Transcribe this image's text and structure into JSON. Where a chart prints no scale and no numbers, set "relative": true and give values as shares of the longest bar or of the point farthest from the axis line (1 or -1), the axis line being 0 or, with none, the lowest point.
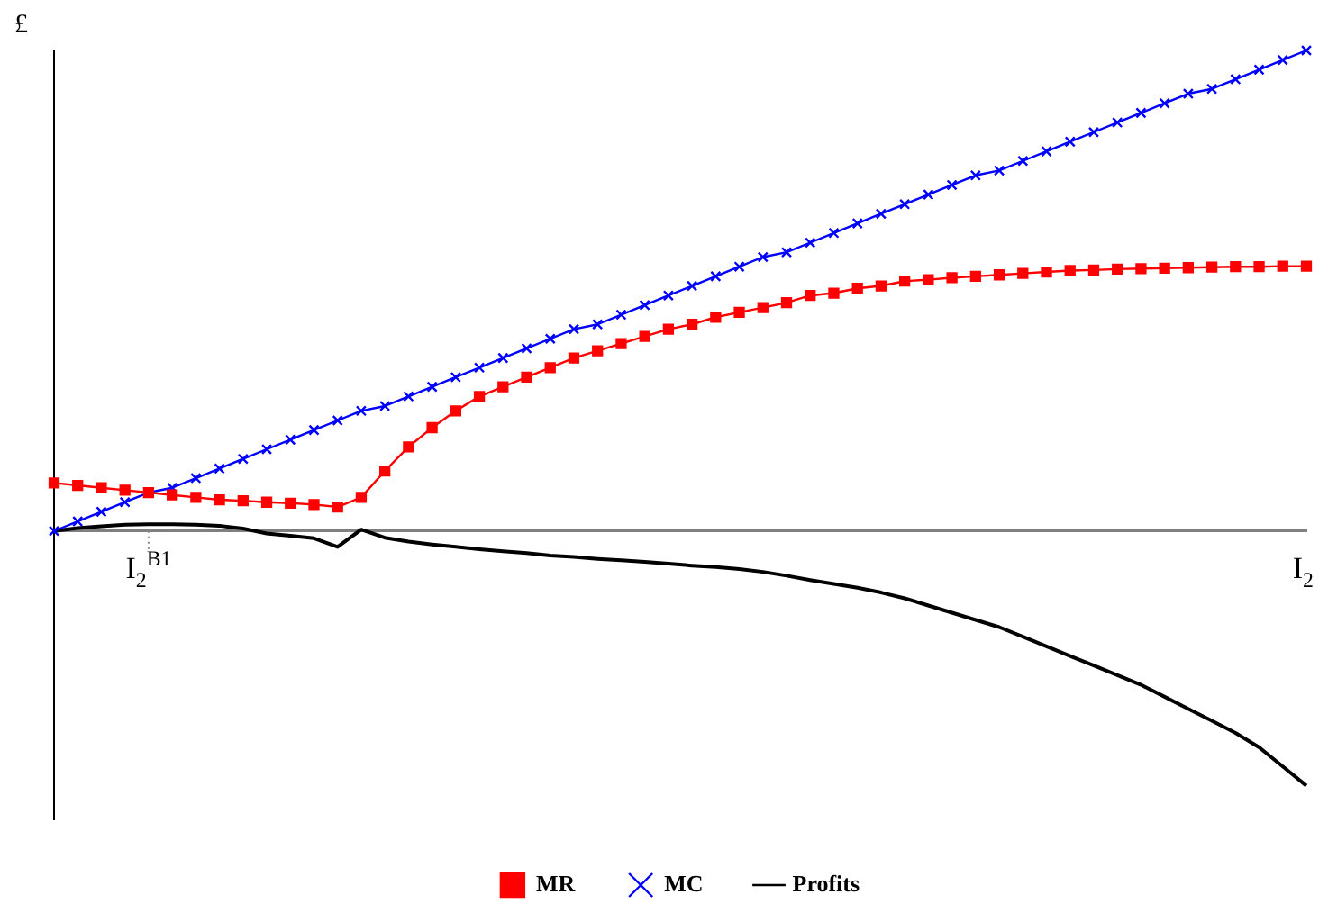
{
  "chart_data": {
    "type": "line",
    "relative": true,
    "ylabel": "£",
    "legend": "bottom",
    "categories": [
      null,
      null,
      null,
      null,
      "I$_{2}$$^{B1}$",
      null,
      null,
      null,
      null,
      null,
      null,
      null,
      null,
      null,
      null,
      null,
      null,
      null,
      null,
      null,
      null,
      null,
      null,
      null,
      null,
      null,
      null,
      null,
      null,
      null,
      null,
      null,
      null,
      null,
      null,
      null,
      null,
      null,
      null,
      null,
      null,
      null,
      null,
      null,
      null,
      null,
      null,
      null,
      null,
      null,
      null,
      null,
      null,
      "I$_{2}$"
    ],
    "series": [
      {
        "name": "MR",
        "color": "#ff0000",
        "marker": "square",
        "values": [
          0.1,
          0.095,
          0.09,
          0.085,
          0.08,
          0.075,
          0.07,
          0.065,
          0.063,
          0.06,
          0.058,
          0.055,
          0.05,
          0.07,
          0.125,
          0.175,
          0.215,
          0.25,
          0.28,
          0.3,
          0.32,
          0.34,
          0.36,
          0.375,
          0.39,
          0.405,
          0.42,
          0.43,
          0.445,
          0.455,
          0.465,
          0.475,
          0.49,
          0.495,
          0.505,
          0.51,
          0.52,
          0.523,
          0.527,
          0.53,
          0.533,
          0.536,
          0.539,
          0.542,
          0.543,
          0.545,
          0.546,
          0.547,
          0.548,
          0.549,
          0.55,
          0.55,
          0.551,
          0.551
        ]
      },
      {
        "name": "MC",
        "color": "#0000ff",
        "marker": "cross",
        "values": [
          0,
          0.02,
          0.04,
          0.06,
          0.08,
          0.09,
          0.11,
          0.13,
          0.15,
          0.17,
          0.19,
          0.21,
          0.23,
          0.25,
          0.26,
          0.28,
          0.3,
          0.32,
          0.34,
          0.36,
          0.38,
          0.4,
          0.42,
          0.43,
          0.45,
          0.47,
          0.49,
          0.51,
          0.53,
          0.55,
          0.57,
          0.58,
          0.6,
          0.62,
          0.64,
          0.66,
          0.68,
          0.7,
          0.72,
          0.74,
          0.75,
          0.77,
          0.79,
          0.81,
          0.83,
          0.85,
          0.87,
          0.89,
          0.91,
          0.92,
          0.94,
          0.96,
          0.98,
          1.0
        ]
      },
      {
        "name": "Profits",
        "color": "#000000",
        "marker": "none",
        "values": [
          0,
          0.006,
          0.01,
          0.013,
          0.014,
          0.014,
          0.013,
          0.011,
          0.005,
          -0.005,
          -0.01,
          -0.015,
          -0.033,
          0.003,
          -0.014,
          -0.022,
          -0.028,
          -0.033,
          -0.038,
          -0.042,
          -0.046,
          -0.051,
          -0.054,
          -0.058,
          -0.061,
          -0.064,
          -0.068,
          -0.072,
          -0.075,
          -0.079,
          -0.085,
          -0.093,
          -0.102,
          -0.11,
          -0.118,
          -0.128,
          -0.14,
          -0.155,
          -0.17,
          -0.185,
          -0.2,
          -0.22,
          -0.24,
          -0.26,
          -0.28,
          -0.3,
          -0.32,
          -0.345,
          -0.37,
          -0.395,
          -0.42,
          -0.45,
          -0.49,
          -0.53
        ]
      }
    ]
  }
}
